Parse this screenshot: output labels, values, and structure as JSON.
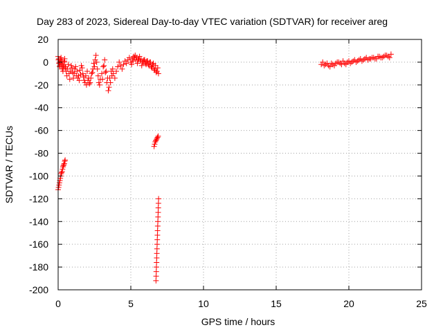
{
  "chart_data": {
    "type": "scatter",
    "title": "Day 283 of 2023, Sidereal Day-to-day VTEC variation (SDTVAR) for receiver areg",
    "xlabel": "GPS time / hours",
    "ylabel": "SDTVAR / TECUs",
    "xlim": [
      0,
      25
    ],
    "ylim": [
      -200,
      20
    ],
    "xticks": [
      0,
      5,
      10,
      15,
      20,
      25
    ],
    "yticks": [
      20,
      0,
      -20,
      -40,
      -60,
      -80,
      -100,
      -120,
      -140,
      -160,
      -180,
      -200
    ],
    "grid": true,
    "marker": "+",
    "color": "#ff0000",
    "series": [
      {
        "name": "SDTVAR",
        "x": [
          0.0,
          0.04,
          0.08,
          0.12,
          0.16,
          0.2,
          0.25,
          0.3,
          0.35,
          0.4,
          0.45,
          0.5,
          0.55,
          0.6,
          0.65,
          0.7,
          0.75,
          0.8,
          0.85,
          0.9,
          0.95,
          1.0,
          1.05,
          1.1,
          1.15,
          1.2,
          1.3,
          1.4,
          1.5,
          1.6,
          1.7,
          1.8,
          1.9,
          2.0,
          2.1,
          2.2,
          2.3,
          2.4,
          2.5,
          2.55,
          2.6,
          2.65,
          2.7,
          2.75,
          2.8,
          2.85,
          2.9,
          3.0,
          3.1,
          3.2,
          3.3,
          3.4,
          3.5,
          3.6,
          3.7,
          3.75,
          3.8,
          3.9,
          4.0,
          4.1,
          4.2,
          4.3,
          4.4,
          4.5,
          4.6,
          4.7,
          4.8,
          4.9,
          5.0,
          5.1,
          5.2,
          5.3,
          5.4,
          5.5,
          5.6,
          5.7,
          5.8,
          5.9,
          6.0,
          6.1,
          6.2,
          6.3,
          6.4,
          6.5,
          6.6,
          6.7,
          6.8,
          6.85,
          6.9,
          0.02,
          0.06,
          0.1,
          0.14,
          0.18,
          0.22,
          0.28,
          0.33,
          0.38,
          0.43,
          0.48,
          1.25,
          1.35,
          1.45,
          1.55,
          1.65,
          1.75,
          1.85,
          1.95,
          2.05,
          2.15,
          2.25,
          2.35,
          2.45,
          3.05,
          3.15,
          3.25,
          3.35,
          3.45,
          3.55,
          3.65,
          5.05,
          5.15,
          5.25,
          5.35,
          5.45,
          5.55,
          5.65,
          5.75,
          5.85,
          5.95,
          6.05,
          6.15,
          6.25,
          6.35,
          6.45,
          6.55,
          6.65,
          6.75,
          0.0,
          0.03,
          0.06,
          0.09,
          0.12,
          0.15,
          0.18,
          0.21,
          0.24,
          0.27,
          0.3,
          0.33,
          0.36,
          0.39,
          0.42,
          0.45,
          0.48,
          6.6,
          6.64,
          6.68,
          6.72,
          6.76,
          6.8,
          6.84,
          6.88,
          6.73,
          6.74,
          6.75,
          6.76,
          6.77,
          6.78,
          6.79,
          6.8,
          6.81,
          6.82,
          6.83,
          6.84,
          6.85,
          6.86,
          6.87,
          6.88,
          6.89,
          6.9,
          6.91,
          18.1,
          18.3,
          18.5,
          18.7,
          18.9,
          19.1,
          19.3,
          19.5,
          19.7,
          19.9,
          20.1,
          20.3,
          20.5,
          20.7,
          20.9,
          21.1,
          21.3,
          21.5,
          21.7,
          21.9,
          22.1,
          22.3,
          22.5,
          22.7,
          22.9,
          18.2,
          18.4,
          18.6,
          18.8,
          19.0,
          19.2,
          19.4,
          19.6,
          19.8,
          20.0,
          20.2,
          20.4,
          20.6,
          20.8,
          21.0,
          21.2,
          21.4,
          21.6,
          21.8,
          22.0,
          22.2,
          22.4,
          22.6,
          22.8
        ],
        "y": [
          5,
          3,
          0,
          -3,
          2,
          4,
          1,
          -2,
          -5,
          0,
          3,
          -4,
          -8,
          -12,
          -6,
          -2,
          -10,
          -15,
          -8,
          -3,
          -5,
          -9,
          -14,
          -10,
          -6,
          -4,
          -8,
          -12,
          -7,
          -3,
          -10,
          -16,
          -12,
          -8,
          -14,
          -18,
          -10,
          -6,
          -4,
          2,
          6,
          0,
          -6,
          -12,
          -18,
          -20,
          -15,
          -10,
          -4,
          2,
          -8,
          -14,
          -22,
          -18,
          -12,
          -6,
          -10,
          -14,
          -8,
          -4,
          0,
          -3,
          -6,
          -2,
          1,
          -1,
          2,
          4,
          0,
          3,
          5,
          6,
          4,
          2,
          5,
          3,
          0,
          2,
          -1,
          1,
          -2,
          0,
          -4,
          -2,
          -6,
          -3,
          -8,
          -5,
          -10,
          2,
          -1,
          -4,
          -1,
          3,
          -2,
          -6,
          -8,
          -3,
          1,
          -5,
          -12,
          -14,
          -16,
          -11,
          -5,
          -13,
          -18,
          -20,
          -16,
          -19,
          -14,
          -9,
          -1,
          -15,
          -3,
          -9,
          -18,
          -25,
          -14,
          -8,
          -2,
          1,
          4,
          2,
          -1,
          3,
          1,
          -3,
          0,
          2,
          -2,
          1,
          -3,
          0,
          -5,
          -1,
          -7,
          -9,
          -112,
          -110,
          -108,
          -106,
          -104,
          -102,
          -100,
          -98,
          -97,
          -96,
          -94,
          -92,
          -91,
          -90,
          -89,
          -87,
          -86,
          -74,
          -72,
          -70,
          -69,
          -68,
          -67,
          -66,
          -65,
          -192,
          -188,
          -184,
          -180,
          -176,
          -172,
          -168,
          -164,
          -160,
          -156,
          -152,
          -148,
          -144,
          -140,
          -136,
          -132,
          -128,
          -124,
          -120,
          -2,
          -3,
          -1,
          -4,
          -2,
          -1,
          0,
          -2,
          -1,
          0,
          -1,
          1,
          0,
          2,
          1,
          3,
          2,
          3,
          4,
          3,
          5,
          4,
          6,
          5,
          7,
          0,
          -2,
          -3,
          -1,
          -3,
          0,
          -1,
          1,
          -2,
          1,
          0,
          2,
          1,
          3,
          2,
          4,
          3,
          4,
          3,
          5,
          4,
          5,
          6,
          4
        ]
      }
    ]
  }
}
